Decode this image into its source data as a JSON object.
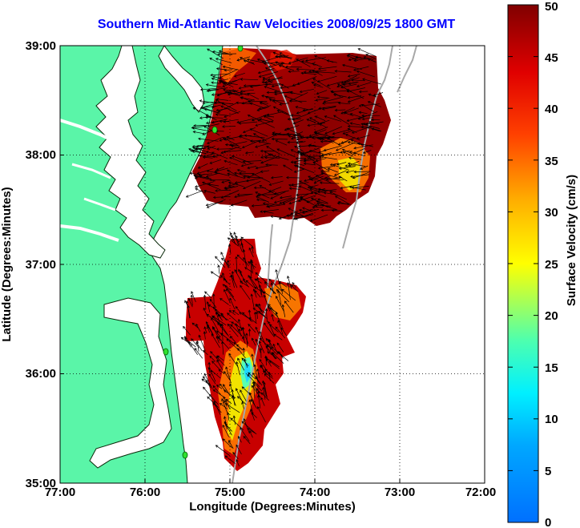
{
  "title": "Southern Mid-Atlantic Raw Velocities 2008/09/25 1800 GMT",
  "axes": {
    "xlabel": "Longitude (Degrees:Minutes)",
    "ylabel": "Latitude (Degrees:Minutes)",
    "x_ticks": [
      "77:00",
      "76:00",
      "75:00",
      "74:00",
      "73:00",
      "72:00"
    ],
    "y_ticks": [
      "35:00",
      "36:00",
      "37:00",
      "38:00",
      "39:00"
    ],
    "xlim": [
      -77,
      -72
    ],
    "ylim": [
      35,
      39
    ],
    "grid": true
  },
  "colorbar": {
    "label": "Surface Velocity (cm/s)",
    "ticks": [
      "0",
      "5",
      "10",
      "15",
      "20",
      "25",
      "30",
      "35",
      "40",
      "45",
      "50"
    ],
    "range": [
      0,
      50
    ],
    "colormap": "jet"
  },
  "colors": {
    "land": "#5af5a8",
    "title": "#0000ff",
    "station": "#2fe02f",
    "bathymetry": "#a8a8a8"
  },
  "stations": [
    {
      "lon": -74.92,
      "lat": 38.98
    },
    {
      "lon": -75.15,
      "lat": 38.23
    },
    {
      "lon": -75.7,
      "lat": 36.2
    },
    {
      "lon": -75.5,
      "lat": 35.26
    }
  ]
}
